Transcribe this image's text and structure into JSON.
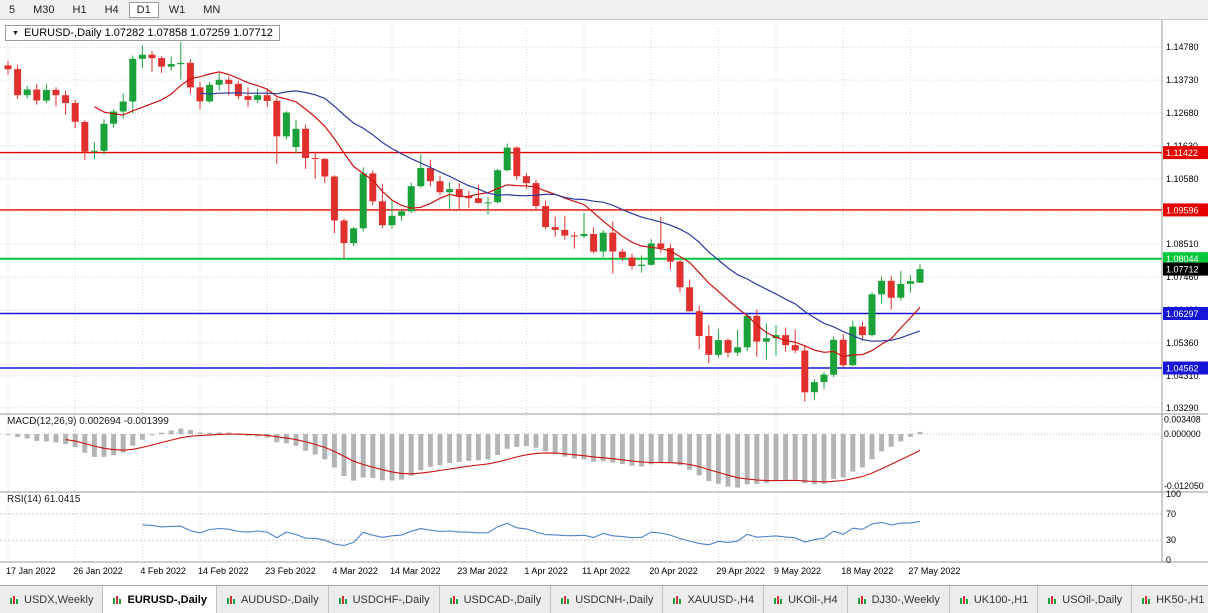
{
  "toolbar": {
    "timeframes": [
      {
        "label": "5",
        "active": false
      },
      {
        "label": "M30",
        "active": false
      },
      {
        "label": "H1",
        "active": false
      },
      {
        "label": "H4",
        "active": false
      },
      {
        "label": "D1",
        "active": true
      },
      {
        "label": "W1",
        "active": false
      },
      {
        "label": "MN",
        "active": false
      }
    ]
  },
  "header": {
    "symbol_ohlc": "EURUSD-,Daily 1.07282 1.07858 1.07259 1.07712"
  },
  "chart_data": {
    "type": "candlestick",
    "symbol": "EURUSD-",
    "timeframe": "Daily",
    "ohlc": {
      "open": "1.07282",
      "high": "1.07858",
      "low": "1.07259",
      "close": "1.07712"
    },
    "y_axis": {
      "range": [
        1.0316,
        1.1539
      ],
      "ticks": [
        "1.14780",
        "1.13730",
        "1.12680",
        "1.11630",
        "1.10580",
        "1.09530",
        "1.08510",
        "1.07460",
        "1.06410",
        "1.05360",
        "1.04310",
        "1.03290"
      ]
    },
    "x_axis": {
      "labels": [
        {
          "i": 0,
          "t": "17 Jan 2022"
        },
        {
          "i": 7,
          "t": "26 Jan 2022"
        },
        {
          "i": 14,
          "t": "4 Feb 2022"
        },
        {
          "i": 20,
          "t": "14 Feb 2022"
        },
        {
          "i": 27,
          "t": "23 Feb 2022"
        },
        {
          "i": 34,
          "t": "4 Mar 2022"
        },
        {
          "i": 40,
          "t": "14 Mar 2022"
        },
        {
          "i": 47,
          "t": "23 Mar 2022"
        },
        {
          "i": 54,
          "t": "1 Apr 2022"
        },
        {
          "i": 60,
          "t": "11 Apr 2022"
        },
        {
          "i": 67,
          "t": "20 Apr 2022"
        },
        {
          "i": 74,
          "t": "29 Apr 2022"
        },
        {
          "i": 80,
          "t": "9 May 2022"
        },
        {
          "i": 87,
          "t": "18 May 2022"
        },
        {
          "i": 94,
          "t": "27 May 2022"
        }
      ]
    },
    "candles": [
      [
        1.142,
        1.1435,
        1.139,
        1.1408
      ],
      [
        1.1408,
        1.1422,
        1.1313,
        1.1325
      ],
      [
        1.1325,
        1.1355,
        1.1315,
        1.1343
      ],
      [
        1.1343,
        1.136,
        1.1295,
        1.1308
      ],
      [
        1.1308,
        1.136,
        1.13,
        1.1342
      ],
      [
        1.1342,
        1.135,
        1.129,
        1.1325
      ],
      [
        1.1325,
        1.134,
        1.1263,
        1.13
      ],
      [
        1.13,
        1.131,
        1.122,
        1.124
      ],
      [
        1.124,
        1.1245,
        1.1119,
        1.1145
      ],
      [
        1.1145,
        1.1175,
        1.1121,
        1.1148
      ],
      [
        1.1148,
        1.1248,
        1.1135,
        1.1234
      ],
      [
        1.1234,
        1.128,
        1.1222,
        1.1273
      ],
      [
        1.1273,
        1.133,
        1.125,
        1.1305
      ],
      [
        1.1305,
        1.1451,
        1.1267,
        1.1441
      ],
      [
        1.1441,
        1.1483,
        1.1412,
        1.1454
      ],
      [
        1.1454,
        1.1465,
        1.14,
        1.1443
      ],
      [
        1.1443,
        1.145,
        1.1396,
        1.1416
      ],
      [
        1.1416,
        1.1448,
        1.1403,
        1.1424
      ],
      [
        1.1424,
        1.1495,
        1.1375,
        1.1428
      ],
      [
        1.1428,
        1.144,
        1.1329,
        1.135
      ],
      [
        1.135,
        1.1368,
        1.128,
        1.1305
      ],
      [
        1.1305,
        1.1368,
        1.1301,
        1.1358
      ],
      [
        1.1358,
        1.1395,
        1.134,
        1.1374
      ],
      [
        1.1374,
        1.1385,
        1.1324,
        1.1361
      ],
      [
        1.1361,
        1.137,
        1.1312,
        1.1322
      ],
      [
        1.1322,
        1.135,
        1.1288,
        1.131
      ],
      [
        1.131,
        1.1345,
        1.13,
        1.1325
      ],
      [
        1.1325,
        1.1342,
        1.1287,
        1.1307
      ],
      [
        1.1307,
        1.1316,
        1.1106,
        1.1194
      ],
      [
        1.1194,
        1.1274,
        1.1184,
        1.127
      ],
      [
        1.116,
        1.1246,
        1.114,
        1.1218
      ],
      [
        1.1218,
        1.1232,
        1.109,
        1.1125
      ],
      [
        1.1125,
        1.1145,
        1.1058,
        1.1122
      ],
      [
        1.1122,
        1.1125,
        1.1045,
        1.1066
      ],
      [
        1.1066,
        1.107,
        1.0885,
        1.0926
      ],
      [
        1.0926,
        1.0932,
        1.0806,
        1.0854
      ],
      [
        1.0854,
        1.0905,
        1.0845,
        1.0901
      ],
      [
        1.0901,
        1.1095,
        1.0891,
        1.1076
      ],
      [
        1.1076,
        1.1085,
        1.0975,
        1.0987
      ],
      [
        1.0987,
        1.1043,
        1.0901,
        1.0911
      ],
      [
        1.0911,
        1.0991,
        1.09,
        1.0941
      ],
      [
        1.0941,
        1.096,
        1.0925,
        1.0955
      ],
      [
        1.0955,
        1.1046,
        1.095,
        1.1035
      ],
      [
        1.1035,
        1.1137,
        1.103,
        1.1093
      ],
      [
        1.1093,
        1.112,
        1.1035,
        1.1051
      ],
      [
        1.1051,
        1.1069,
        1.1008,
        1.1016
      ],
      [
        1.1016,
        1.1048,
        1.0963,
        1.1026
      ],
      [
        1.1026,
        1.1045,
        1.0963,
        1.1004
      ],
      [
        1.1004,
        1.1021,
        1.0966,
        1.0997
      ],
      [
        1.0997,
        1.104,
        1.098,
        1.0982
      ],
      [
        1.0982,
        1.1,
        1.0945,
        1.0984
      ],
      [
        1.0984,
        1.109,
        1.098,
        1.1086
      ],
      [
        1.1086,
        1.1171,
        1.1083,
        1.1158
      ],
      [
        1.1158,
        1.1162,
        1.1055,
        1.1067
      ],
      [
        1.1067,
        1.1076,
        1.1027,
        1.1045
      ],
      [
        1.1045,
        1.1055,
        1.096,
        1.0972
      ],
      [
        1.0972,
        1.099,
        1.0898,
        1.0905
      ],
      [
        1.0905,
        1.0938,
        1.0874,
        1.0896
      ],
      [
        1.0896,
        1.094,
        1.0865,
        1.0878
      ],
      [
        1.0878,
        1.089,
        1.0836,
        1.0876
      ],
      [
        1.0876,
        1.095,
        1.087,
        1.0883
      ],
      [
        1.0883,
        1.0905,
        1.0821,
        1.0827
      ],
      [
        1.0827,
        1.0895,
        1.0809,
        1.0887
      ],
      [
        1.0887,
        1.0923,
        1.0757,
        1.0827
      ],
      [
        1.0827,
        1.0835,
        1.0798,
        1.0808
      ],
      [
        1.0808,
        1.082,
        1.077,
        1.0781
      ],
      [
        1.0781,
        1.0815,
        1.076,
        1.0785
      ],
      [
        1.0785,
        1.0866,
        1.0782,
        1.0853
      ],
      [
        1.0853,
        1.0937,
        1.0824,
        1.0838
      ],
      [
        1.0838,
        1.0852,
        1.077,
        1.0795
      ],
      [
        1.0795,
        1.08,
        1.0697,
        1.0713
      ],
      [
        1.0713,
        1.0738,
        1.0635,
        1.0637
      ],
      [
        1.0637,
        1.0655,
        1.0515,
        1.0558
      ],
      [
        1.0558,
        1.0593,
        1.0471,
        1.0498
      ],
      [
        1.0498,
        1.058,
        1.049,
        1.0545
      ],
      [
        1.0545,
        1.055,
        1.049,
        1.0505
      ],
      [
        1.0505,
        1.0578,
        1.0495,
        1.0522
      ],
      [
        1.0522,
        1.063,
        1.051,
        1.0622
      ],
      [
        1.0622,
        1.0642,
        1.0492,
        1.054
      ],
      [
        1.054,
        1.0598,
        1.0483,
        1.0551
      ],
      [
        1.0551,
        1.0592,
        1.0495,
        1.0561
      ],
      [
        1.0561,
        1.0585,
        1.0508,
        1.0529
      ],
      [
        1.0529,
        1.0578,
        1.0503,
        1.0512
      ],
      [
        1.0512,
        1.053,
        1.0349,
        1.0379
      ],
      [
        1.0379,
        1.042,
        1.0354,
        1.0411
      ],
      [
        1.0411,
        1.0443,
        1.039,
        1.0435
      ],
      [
        1.0435,
        1.0556,
        1.0427,
        1.0546
      ],
      [
        1.0546,
        1.0564,
        1.0459,
        1.0465
      ],
      [
        1.0465,
        1.0607,
        1.0462,
        1.0588
      ],
      [
        1.0588,
        1.0604,
        1.0543,
        1.0561
      ],
      [
        1.0561,
        1.0697,
        1.0556,
        1.0691
      ],
      [
        1.0691,
        1.0748,
        1.0661,
        1.0734
      ],
      [
        1.0734,
        1.0749,
        1.0642,
        1.068
      ],
      [
        1.068,
        1.0765,
        1.0671,
        1.0724
      ],
      [
        1.0724,
        1.0751,
        1.0697,
        1.0733
      ],
      [
        1.0728,
        1.0786,
        1.0726,
        1.0771
      ]
    ],
    "hlines": [
      {
        "price": 1.11422,
        "display": "1.11422",
        "color": "#e60000",
        "width": 1.4
      },
      {
        "price": 1.09596,
        "display": "1.09596",
        "color": "#e60000",
        "width": 1.4
      },
      {
        "price": 1.08044,
        "display": "1.08044",
        "color": "#00c83c",
        "width": 2
      },
      {
        "price": 1.06297,
        "display": "1.06297",
        "color": "#1616d8",
        "width": 1.4
      },
      {
        "price": 1.04562,
        "display": "1.04562",
        "color": "#1616d8",
        "width": 1.4
      }
    ],
    "price_label": {
      "value": 1.07712,
      "display": "1.07712",
      "bg": "#000000"
    },
    "overlays": [
      {
        "name": "ma-fast",
        "type": "sma",
        "period": 10,
        "color": "#cc1111"
      },
      {
        "name": "ma-slow",
        "type": "sma",
        "period": 21,
        "color": "#2e3ba0"
      }
    ],
    "macd": {
      "label": "MACD(12,26,9) 0.002694 -0.001399",
      "fast": 12,
      "slow": 26,
      "signal": 9,
      "ticks": [
        "0.003408",
        "0.000000",
        "-0.012050"
      ],
      "range": [
        -0.013,
        0.0042
      ],
      "hist_color": "#b4b4b4",
      "signal_color": "#cc1111"
    },
    "rsi": {
      "label": "RSI(14) 61.0415",
      "period": 14,
      "value": "61.0415",
      "ticks": [
        "100",
        "70",
        "30",
        "0"
      ],
      "levels": [
        70,
        30
      ],
      "range": [
        0,
        100
      ],
      "color": "#4d82c8"
    }
  },
  "tabs": [
    {
      "label": "USDX,Weekly",
      "active": false
    },
    {
      "label": "EURUSD-,Daily",
      "active": true
    },
    {
      "label": "AUDUSD-,Daily",
      "active": false
    },
    {
      "label": "USDCHF-,Daily",
      "active": false
    },
    {
      "label": "USDCAD-,Daily",
      "active": false
    },
    {
      "label": "USDCNH-,Daily",
      "active": false
    },
    {
      "label": "XAUUSD-,H4",
      "active": false
    },
    {
      "label": "UKOil-,H4",
      "active": false
    },
    {
      "label": "DJ30-,Weekly",
      "active": false
    },
    {
      "label": "UK100-,H1",
      "active": false
    },
    {
      "label": "USOil-,Daily",
      "active": false
    },
    {
      "label": "HK50-,H1",
      "active": false
    }
  ],
  "colors": {
    "up": "#1ba13a",
    "down": "#e0312e",
    "grid": "#d4d4d4",
    "separator": "#999999",
    "bg": "#ffffff",
    "axis_text": "#000000",
    "toolbar_bg": "#f0f0f0",
    "tabbar_bg": "#e4e4e4"
  }
}
